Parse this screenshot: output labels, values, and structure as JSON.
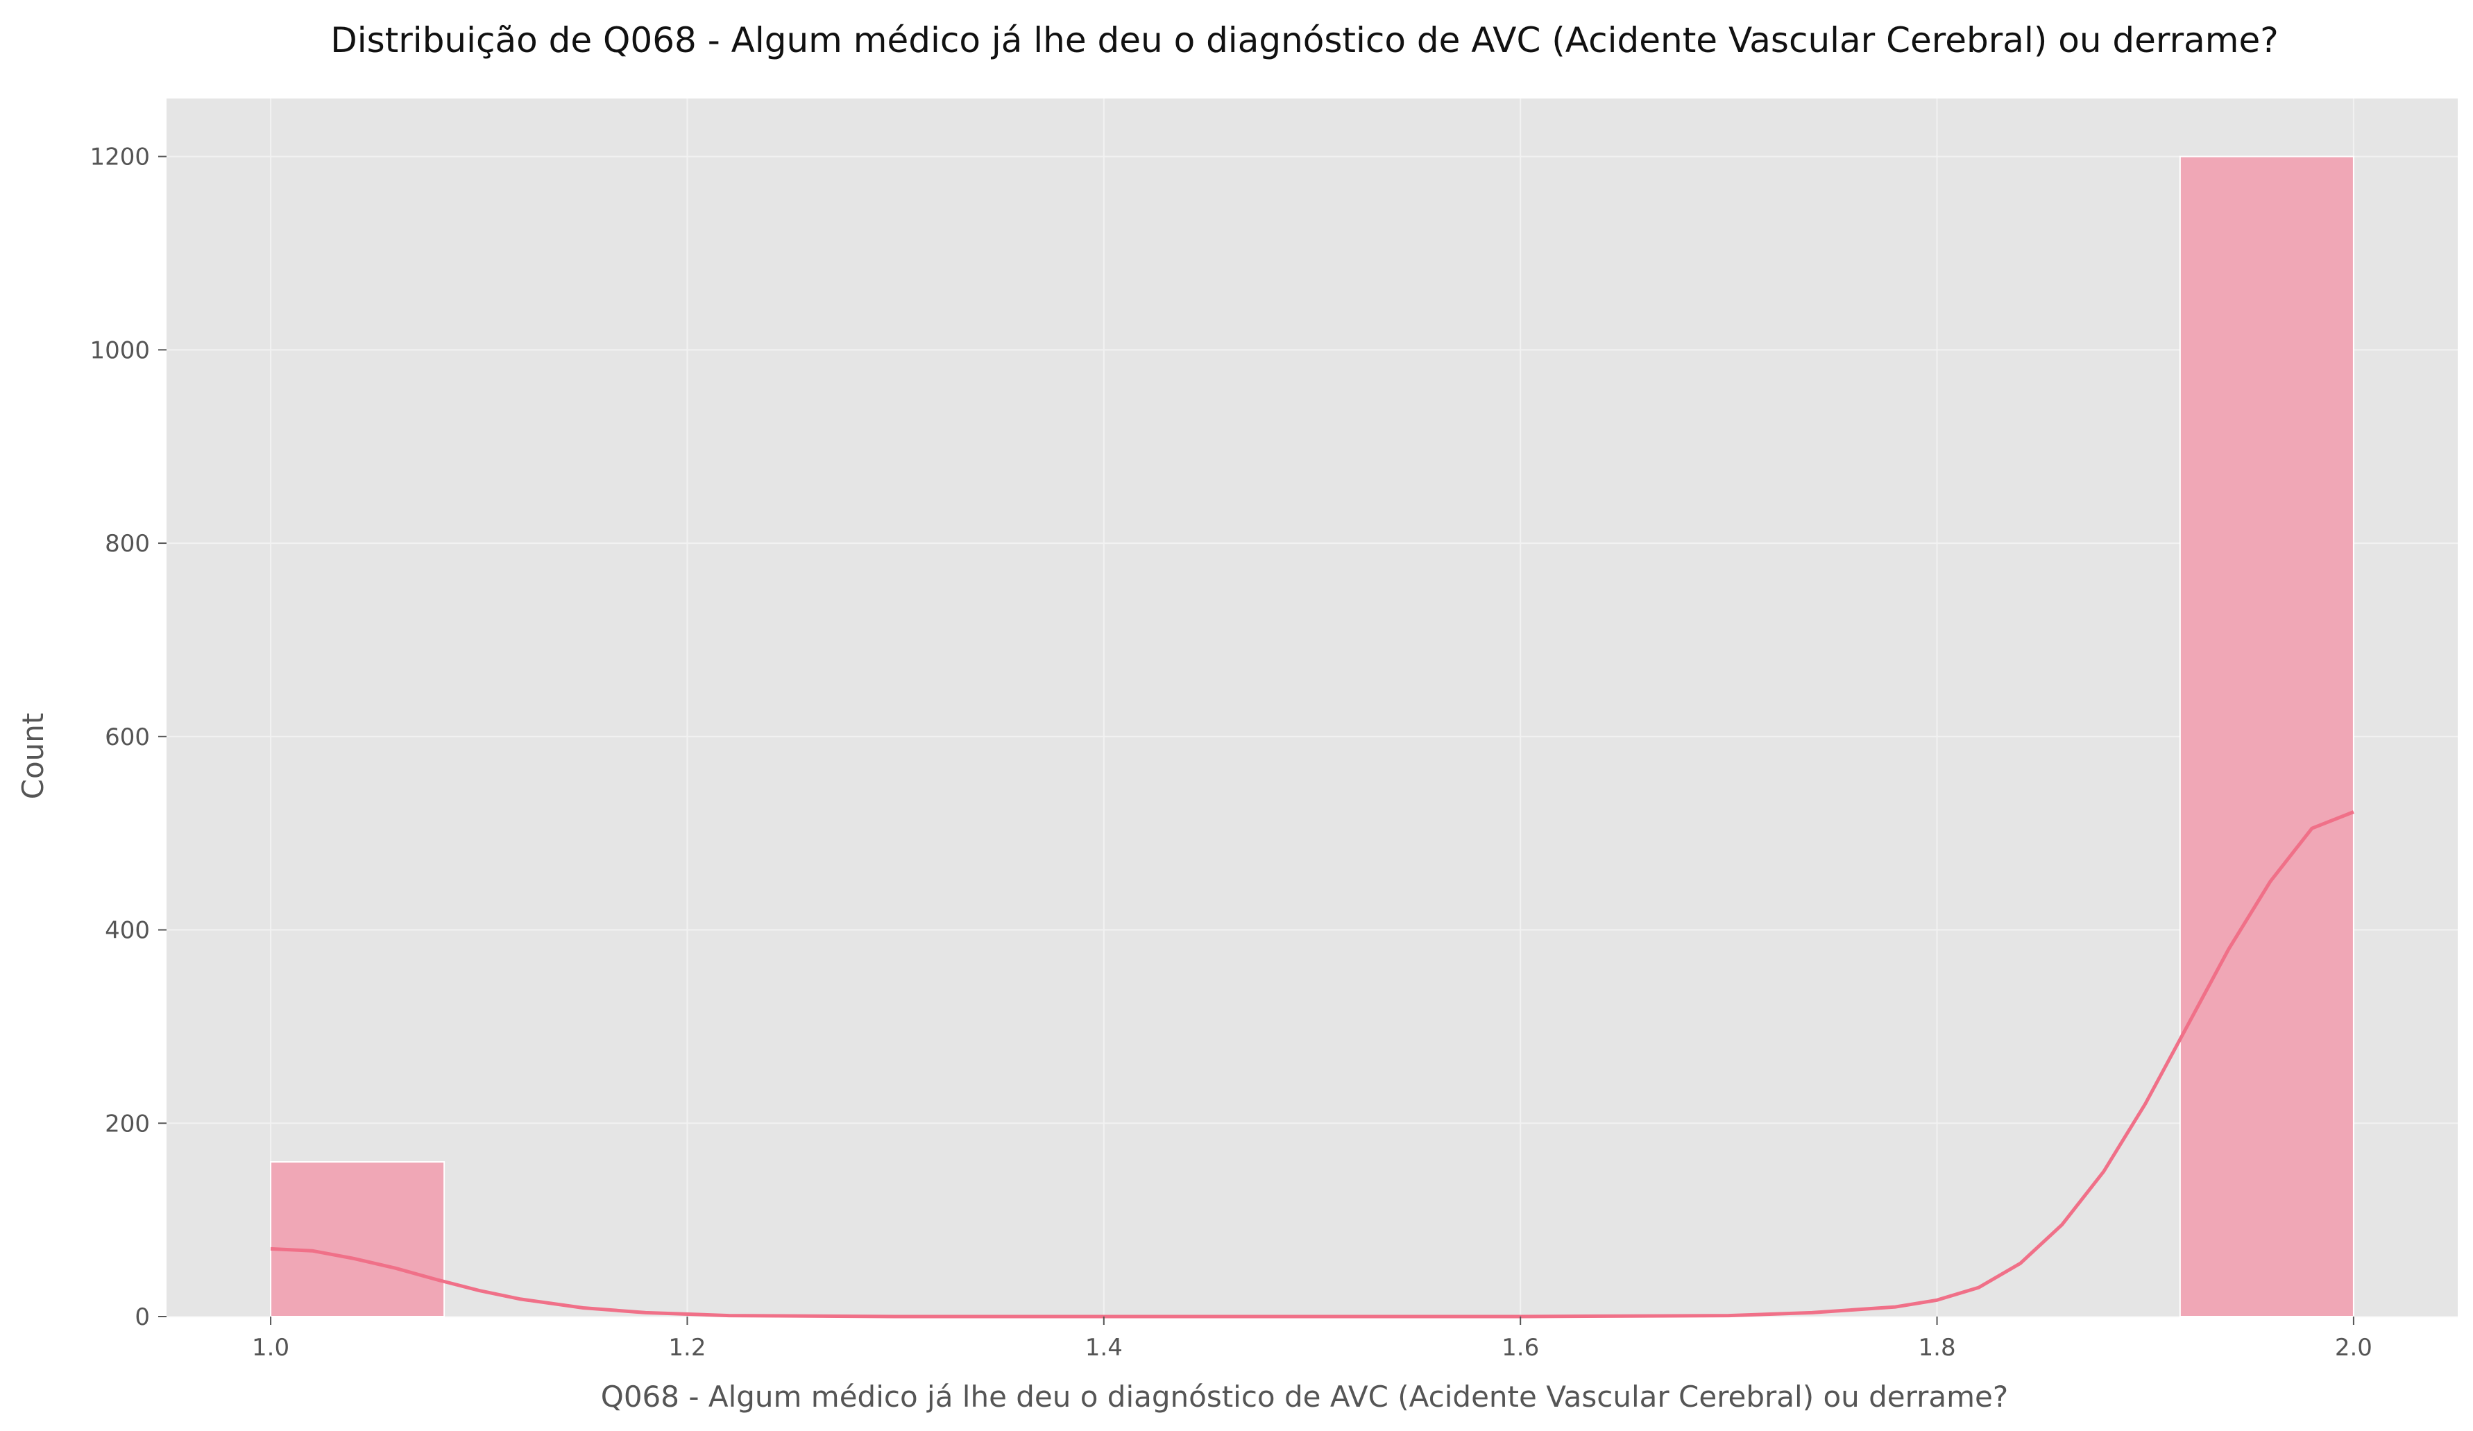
{
  "chart_data": {
    "type": "bar",
    "title": "Distribuição de Q068 - Algum médico já lhe deu o diagnóstico de AVC (Acidente Vascular Cerebral) ou derrame?",
    "xlabel": "Q068 - Algum médico já lhe deu o diagnóstico de AVC (Acidente Vascular Cerebral) ou derrame?",
    "ylabel": "Count",
    "xlim": [
      0.95,
      2.05
    ],
    "ylim": [
      0,
      1260
    ],
    "x_ticks": [
      "1.0",
      "1.2",
      "1.4",
      "1.6",
      "1.8",
      "2.0"
    ],
    "y_ticks": [
      "0",
      "200",
      "400",
      "600",
      "800",
      "1000",
      "1200"
    ],
    "grid": true,
    "bins": [
      {
        "x0": 1.0,
        "x1": 1.0833,
        "count": 160
      },
      {
        "x0": 1.9167,
        "x1": 2.0,
        "count": 1200
      }
    ],
    "kde": {
      "x": [
        1.0,
        1.02,
        1.04,
        1.06,
        1.08,
        1.1,
        1.12,
        1.15,
        1.18,
        1.22,
        1.3,
        1.4,
        1.5,
        1.6,
        1.7,
        1.74,
        1.78,
        1.8,
        1.82,
        1.84,
        1.86,
        1.88,
        1.9,
        1.92,
        1.94,
        1.96,
        1.98,
        2.0
      ],
      "y": [
        70,
        68,
        60,
        50,
        38,
        27,
        18,
        9,
        4,
        1,
        0,
        0,
        0,
        0,
        1,
        4,
        10,
        17,
        30,
        55,
        95,
        150,
        220,
        300,
        380,
        450,
        505,
        522
      ]
    },
    "colors": {
      "bar": "#f0a7b6",
      "bar_edge": "#ffffff",
      "kde": "#f07088",
      "plot_bg": "#e5e5e5",
      "grid": "#f2f2f2"
    }
  }
}
